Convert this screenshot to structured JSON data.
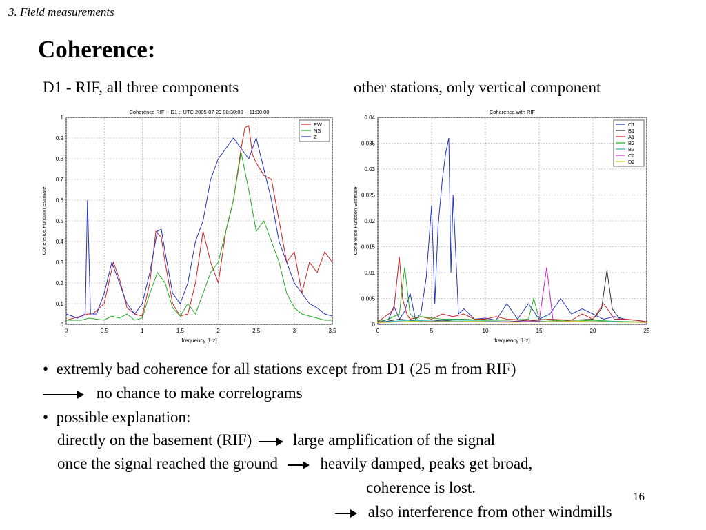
{
  "slide": {
    "section": "3. Field measurements",
    "title": "Coherence:",
    "left_caption": "D1 - RIF, all three components",
    "right_caption": "other stations, only vertical component",
    "page_number": "16",
    "bullet_char": "•",
    "lines": {
      "b1": "extremly bad coherence for all stations except from D1 (25 m from RIF)",
      "l2": "no chance to make correlograms",
      "b2": "possible explanation:",
      "l4a": "directly on the basement (RIF)",
      "l4b": "large amplification of the signal",
      "l5a": "once the signal reached the ground",
      "l5b": "heavily damped, peaks get broad,",
      "l6": "coherence is lost.",
      "l7": "also interference from other windmills"
    }
  },
  "chart_data": [
    {
      "type": "line",
      "title": "Coherence RIF -- D1 :: UTC 2005-07-29 08:30:00 -- 11:30:00",
      "xlabel": "frequency [Hz]",
      "ylabel": "Coherence Function Estimate",
      "xlim": [
        0,
        3.5
      ],
      "ylim": [
        0,
        1
      ],
      "grid": true,
      "legend_position": "top-right",
      "xticks": [
        0,
        0.5,
        1,
        1.5,
        2,
        2.5,
        3,
        3.5
      ],
      "xtick_labels": [
        "0",
        "0.5",
        "1",
        "1.5",
        "2",
        "2.5",
        "3",
        "3.5"
      ],
      "yticks": [
        0,
        0.1,
        0.2,
        0.3,
        0.4,
        0.5,
        0.6,
        0.7,
        0.8,
        0.9,
        1
      ],
      "ytick_labels": [
        "0",
        "0.1",
        "0.2",
        "0.3",
        "0.4",
        "0.5",
        "0.6",
        "0.7",
        "0.8",
        "0.9",
        "1"
      ],
      "series": [
        {
          "name": "EW",
          "color": "#cc2222",
          "x": [
            0,
            0.2,
            0.28,
            0.35,
            0.5,
            0.62,
            0.7,
            0.8,
            0.9,
            1.0,
            1.1,
            1.18,
            1.25,
            1.3,
            1.4,
            1.5,
            1.6,
            1.7,
            1.8,
            1.9,
            2.0,
            2.1,
            2.2,
            2.3,
            2.35,
            2.4,
            2.45,
            2.5,
            2.6,
            2.7,
            2.8,
            2.9,
            3.0,
            3.1,
            3.2,
            3.3,
            3.4,
            3.5
          ],
          "y": [
            0.02,
            0.04,
            0.05,
            0.05,
            0.1,
            0.3,
            0.22,
            0.08,
            0.05,
            0.04,
            0.2,
            0.45,
            0.42,
            0.3,
            0.1,
            0.04,
            0.05,
            0.2,
            0.45,
            0.3,
            0.2,
            0.45,
            0.6,
            0.85,
            0.95,
            0.96,
            0.82,
            0.78,
            0.72,
            0.7,
            0.5,
            0.3,
            0.35,
            0.15,
            0.3,
            0.25,
            0.35,
            0.3
          ]
        },
        {
          "name": "NS",
          "color": "#22aa22",
          "x": [
            0,
            0.2,
            0.3,
            0.5,
            0.6,
            0.7,
            0.8,
            0.9,
            1.0,
            1.1,
            1.2,
            1.3,
            1.4,
            1.5,
            1.6,
            1.7,
            1.8,
            1.9,
            2.0,
            2.1,
            2.2,
            2.3,
            2.4,
            2.5,
            2.6,
            2.7,
            2.8,
            2.9,
            3.0,
            3.1,
            3.2,
            3.3,
            3.4,
            3.5
          ],
          "y": [
            0.02,
            0.02,
            0.03,
            0.02,
            0.04,
            0.03,
            0.05,
            0.02,
            0.03,
            0.15,
            0.25,
            0.2,
            0.08,
            0.04,
            0.1,
            0.05,
            0.15,
            0.25,
            0.3,
            0.45,
            0.6,
            0.83,
            0.65,
            0.45,
            0.5,
            0.4,
            0.3,
            0.15,
            0.08,
            0.05,
            0.04,
            0.03,
            0.02,
            0.02
          ]
        },
        {
          "name": "Z",
          "color": "#2233bb",
          "x": [
            0,
            0.15,
            0.25,
            0.28,
            0.32,
            0.4,
            0.5,
            0.6,
            0.7,
            0.8,
            0.9,
            1.0,
            1.1,
            1.2,
            1.25,
            1.3,
            1.4,
            1.5,
            1.6,
            1.7,
            1.8,
            1.9,
            2.0,
            2.1,
            2.2,
            2.3,
            2.4,
            2.5,
            2.6,
            2.7,
            2.8,
            2.9,
            3.0,
            3.1,
            3.2,
            3.3,
            3.4,
            3.5
          ],
          "y": [
            0.05,
            0.03,
            0.05,
            0.6,
            0.05,
            0.05,
            0.15,
            0.3,
            0.2,
            0.1,
            0.05,
            0.1,
            0.25,
            0.45,
            0.46,
            0.35,
            0.15,
            0.1,
            0.2,
            0.4,
            0.5,
            0.7,
            0.8,
            0.85,
            0.9,
            0.85,
            0.8,
            0.9,
            0.75,
            0.6,
            0.4,
            0.3,
            0.2,
            0.15,
            0.1,
            0.08,
            0.05,
            0.04
          ]
        }
      ]
    },
    {
      "type": "line",
      "title": "Coherence with RIF",
      "xlabel": "frequency [Hz]",
      "ylabel": "Coherence Function Estimate",
      "xlim": [
        0,
        25
      ],
      "ylim": [
        0,
        0.04
      ],
      "grid": true,
      "legend_position": "top-right",
      "xticks": [
        0,
        5,
        10,
        15,
        20,
        25
      ],
      "xtick_labels": [
        "0",
        "5",
        "10",
        "15",
        "20",
        "25"
      ],
      "yticks": [
        0,
        0.005,
        0.01,
        0.015,
        0.02,
        0.025,
        0.03,
        0.035,
        0.04
      ],
      "ytick_labels": [
        "0",
        "0.005",
        "0.01",
        "0.015",
        "0.02",
        "0.025",
        "0.03",
        "0.035",
        "0.04"
      ],
      "series": [
        {
          "name": "C1",
          "color": "#2233bb",
          "x": [
            0,
            1,
            1.5,
            2,
            2.5,
            3,
            3.5,
            4,
            4.5,
            5,
            5.3,
            5.6,
            6,
            6.3,
            6.6,
            6.8,
            7,
            7.5,
            8,
            9,
            10,
            11,
            12,
            13,
            14,
            15,
            16,
            17,
            18,
            19,
            20,
            21,
            22,
            23,
            24,
            25
          ],
          "y": [
            0.0003,
            0.001,
            0.0035,
            0.001,
            0.0025,
            0.006,
            0.001,
            0.002,
            0.009,
            0.023,
            0.004,
            0.019,
            0.028,
            0.033,
            0.036,
            0.01,
            0.025,
            0.002,
            0.003,
            0.001,
            0.0012,
            0.0008,
            0.004,
            0.001,
            0.004,
            0.001,
            0.002,
            0.005,
            0.002,
            0.003,
            0.002,
            0.001,
            0.0015,
            0.001,
            0.0008,
            0.0005
          ]
        },
        {
          "name": "B1",
          "color": "#333333",
          "x": [
            0,
            2,
            4,
            6,
            8,
            10,
            12,
            14,
            16,
            18,
            20,
            20.8,
            21.3,
            21.8,
            22.5,
            24,
            25
          ],
          "y": [
            0.0003,
            0.001,
            0.0005,
            0.0008,
            0.0005,
            0.0006,
            0.0005,
            0.0008,
            0.0005,
            0.0008,
            0.001,
            0.003,
            0.0105,
            0.003,
            0.001,
            0.0008,
            0.0005
          ]
        },
        {
          "name": "A1",
          "color": "#cc2222",
          "x": [
            0,
            1,
            1.5,
            2,
            2.3,
            2.7,
            3,
            4,
            5,
            6,
            7,
            8,
            9,
            10,
            11,
            12,
            14,
            16,
            18,
            19,
            20,
            21,
            22,
            23,
            24,
            25
          ],
          "y": [
            0.0005,
            0.002,
            0.003,
            0.013,
            0.005,
            0.002,
            0.001,
            0.0015,
            0.001,
            0.002,
            0.0015,
            0.002,
            0.001,
            0.001,
            0.0015,
            0.001,
            0.0008,
            0.001,
            0.0008,
            0.002,
            0.001,
            0.004,
            0.001,
            0.001,
            0.0008,
            0.0005
          ]
        },
        {
          "name": "B2",
          "color": "#22aa22",
          "x": [
            0,
            1,
            2,
            2.5,
            3,
            3.5,
            4,
            6,
            8,
            10,
            12,
            14,
            14.5,
            15,
            16,
            18,
            20,
            22,
            24,
            25
          ],
          "y": [
            0.0005,
            0.001,
            0.002,
            0.011,
            0.002,
            0.001,
            0.0015,
            0.001,
            0.001,
            0.0008,
            0.0008,
            0.001,
            0.005,
            0.001,
            0.0008,
            0.0006,
            0.0008,
            0.0006,
            0.0005,
            0.0004
          ]
        },
        {
          "name": "B3",
          "color": "#22bbbb",
          "x": [
            0,
            3,
            6,
            9,
            12,
            15,
            18,
            21,
            25
          ],
          "y": [
            0.0004,
            0.0008,
            0.0006,
            0.0007,
            0.0005,
            0.0006,
            0.0005,
            0.0006,
            0.0004
          ]
        },
        {
          "name": "C2",
          "color": "#cc22cc",
          "x": [
            0,
            4,
            8,
            12,
            15,
            15.7,
            16.3,
            17,
            20,
            25
          ],
          "y": [
            0.0004,
            0.0006,
            0.0005,
            0.0005,
            0.0006,
            0.011,
            0.0006,
            0.0005,
            0.0005,
            0.0004
          ]
        },
        {
          "name": "D2",
          "color": "#cccc22",
          "x": [
            0,
            3,
            6,
            9,
            12,
            15,
            18,
            21,
            24,
            25
          ],
          "y": [
            0.0003,
            0.0006,
            0.0005,
            0.0006,
            0.0004,
            0.0005,
            0.0006,
            0.0005,
            0.0004,
            0.0003
          ]
        }
      ]
    }
  ]
}
